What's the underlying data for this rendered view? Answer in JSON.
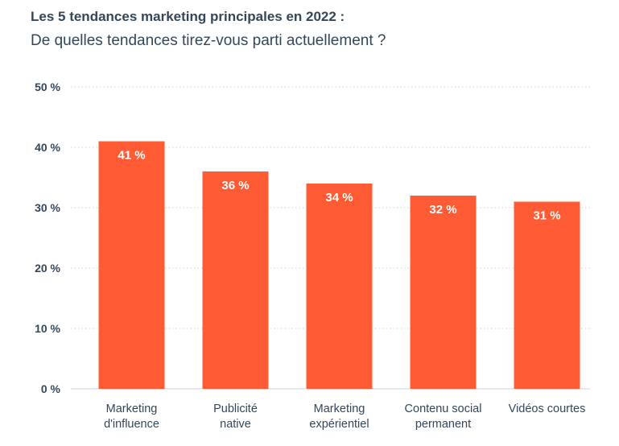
{
  "title": "Les 5 tendances marketing principales en 2022 :",
  "subtitle": "De quelles tendances tirez-vous parti actuellement ?",
  "colors": {
    "bar": "#ff5c35",
    "grid": "#cbd6e2",
    "text": "#33475b"
  },
  "chart_data": {
    "type": "bar",
    "title": "Les 5 tendances marketing principales en 2022 :",
    "subtitle": "De quelles tendances tirez-vous parti actuellement ?",
    "categories": [
      [
        "Marketing",
        "d'influence"
      ],
      [
        "Publicité",
        "native"
      ],
      [
        "Marketing",
        "expérientiel"
      ],
      [
        "Contenu social",
        "permanent"
      ],
      [
        "Vidéos courtes"
      ]
    ],
    "values": [
      41,
      36,
      34,
      32,
      31
    ],
    "data_labels": [
      "41 %",
      "36 %",
      "34 %",
      "32 %",
      "31 %"
    ],
    "ylim": [
      0,
      50
    ],
    "yticks": [
      0,
      10,
      20,
      30,
      40,
      50
    ],
    "ytick_labels": [
      "0 %",
      "10 %",
      "20 %",
      "30 %",
      "40 %",
      "50 %"
    ],
    "grid": true
  }
}
